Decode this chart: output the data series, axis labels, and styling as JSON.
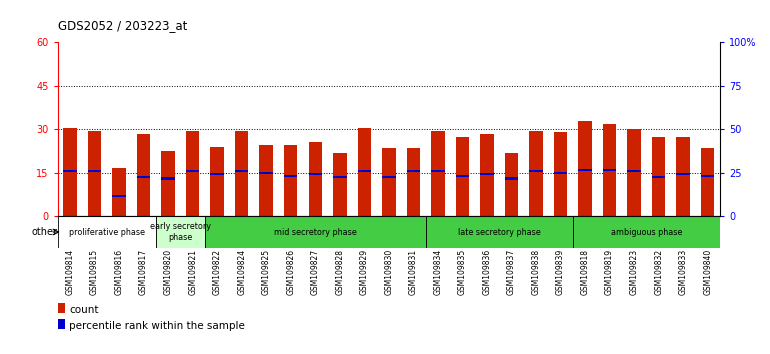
{
  "title": "GDS2052 / 203223_at",
  "samples": [
    "GSM109814",
    "GSM109815",
    "GSM109816",
    "GSM109817",
    "GSM109820",
    "GSM109821",
    "GSM109822",
    "GSM109824",
    "GSM109825",
    "GSM109826",
    "GSM109827",
    "GSM109828",
    "GSM109829",
    "GSM109830",
    "GSM109831",
    "GSM109834",
    "GSM109835",
    "GSM109836",
    "GSM109837",
    "GSM109838",
    "GSM109839",
    "GSM109818",
    "GSM109819",
    "GSM109823",
    "GSM109832",
    "GSM109833",
    "GSM109840"
  ],
  "count_values": [
    30.5,
    29.5,
    16.5,
    28.5,
    22.5,
    29.5,
    24.0,
    29.5,
    24.5,
    24.5,
    25.5,
    22.0,
    30.5,
    23.5,
    23.5,
    29.5,
    27.5,
    28.5,
    22.0,
    29.5,
    29.0,
    33.0,
    32.0,
    30.0,
    27.5,
    27.5,
    23.5
  ],
  "percentile_values": [
    15.5,
    15.5,
    7.0,
    13.5,
    13.0,
    15.5,
    14.5,
    15.5,
    15.0,
    14.0,
    14.5,
    13.5,
    15.5,
    13.5,
    15.5,
    15.5,
    14.0,
    14.5,
    13.0,
    15.5,
    15.0,
    16.0,
    16.0,
    15.5,
    13.5,
    14.5,
    14.0
  ],
  "phase_data": [
    {
      "label": "proliferative phase",
      "start": 0,
      "end": 4,
      "color": "#ffffff"
    },
    {
      "label": "early secretory\nphase",
      "start": 4,
      "end": 6,
      "color": "#ccffcc"
    },
    {
      "label": "mid secretory phase",
      "start": 6,
      "end": 15,
      "color": "#44cc44"
    },
    {
      "label": "late secretory phase",
      "start": 15,
      "end": 21,
      "color": "#44cc44"
    },
    {
      "label": "ambiguous phase",
      "start": 21,
      "end": 27,
      "color": "#44cc44"
    }
  ],
  "bar_color_red": "#cc2200",
  "bar_color_blue": "#0000cc",
  "ylim_left": [
    0,
    60
  ],
  "ylim_right": [
    0,
    100
  ],
  "yticks_left": [
    0,
    15,
    30,
    45,
    60
  ],
  "yticks_right": [
    0,
    25,
    50,
    75,
    100
  ],
  "ytick_labels_right": [
    "0",
    "25",
    "50",
    "75",
    "100%"
  ],
  "grid_lines": [
    15,
    30,
    45
  ],
  "bg_color": "#ffffff"
}
